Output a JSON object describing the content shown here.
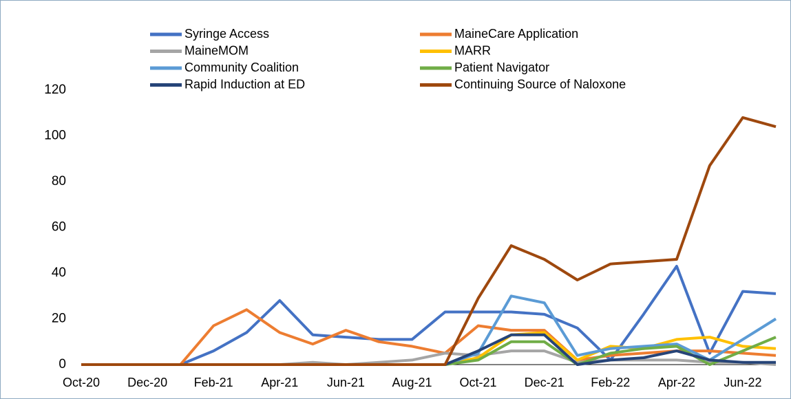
{
  "chart_data": {
    "type": "line",
    "categories": [
      "Oct-20",
      null,
      "Dec-20",
      null,
      "Feb-21",
      null,
      "Apr-21",
      null,
      "Jun-21",
      null,
      "Aug-21",
      null,
      "Oct-21",
      null,
      "Dec-21",
      null,
      "Feb-22",
      null,
      "Apr-22",
      null,
      "Jun-22",
      null
    ],
    "series": [
      {
        "name": "Syringe Access",
        "color": "#4472c4",
        "values": [
          0,
          0,
          0,
          0,
          6,
          14,
          28,
          13,
          12,
          11,
          11,
          23,
          23,
          23,
          22,
          16,
          2,
          22,
          43,
          5,
          32,
          31
        ]
      },
      {
        "name": "MaineCare Application",
        "color": "#ed7d31",
        "values": [
          0,
          0,
          0,
          0,
          17,
          24,
          14,
          9,
          15,
          10,
          8,
          5,
          17,
          15,
          15,
          2,
          4,
          5,
          6,
          6,
          5,
          4
        ]
      },
      {
        "name": "MaineMOM",
        "color": "#a5a5a5",
        "values": [
          0,
          0,
          0,
          0,
          0,
          0,
          0,
          1,
          0,
          1,
          2,
          5,
          4,
          6,
          6,
          1,
          2,
          2,
          2,
          1,
          1,
          0
        ]
      },
      {
        "name": "MARR",
        "color": "#ffc000",
        "values": [
          0,
          0,
          0,
          0,
          0,
          0,
          0,
          0,
          0,
          0,
          0,
          0,
          3,
          13,
          14,
          2,
          8,
          7,
          11,
          12,
          8,
          7
        ]
      },
      {
        "name": "Community Coalition",
        "color": "#5b9bd5",
        "values": [
          0,
          0,
          0,
          0,
          0,
          0,
          0,
          0,
          0,
          0,
          0,
          0,
          5,
          30,
          27,
          4,
          7,
          8,
          9,
          2,
          11,
          20
        ]
      },
      {
        "name": "Patient Navigator",
        "color": "#70ad47",
        "values": [
          0,
          0,
          0,
          0,
          0,
          0,
          0,
          0,
          0,
          0,
          0,
          0,
          2,
          10,
          10,
          0,
          5,
          7,
          8,
          0,
          6,
          12
        ]
      },
      {
        "name": "Rapid Induction at ED",
        "color": "#264478",
        "values": [
          0,
          0,
          0,
          0,
          0,
          0,
          0,
          0,
          0,
          0,
          0,
          0,
          6,
          13,
          13,
          0,
          2,
          3,
          6,
          2,
          1,
          1
        ]
      },
      {
        "name": "Continuing Source of Naloxone",
        "color": "#9e480e",
        "values": [
          0,
          0,
          0,
          0,
          0,
          0,
          0,
          0,
          0,
          0,
          0,
          0,
          29,
          52,
          46,
          37,
          44,
          45,
          46,
          87,
          108,
          104
        ]
      }
    ],
    "ylim": [
      0,
      120
    ],
    "yticks": [
      0,
      20,
      40,
      60,
      80,
      100,
      120
    ],
    "grid": false
  }
}
